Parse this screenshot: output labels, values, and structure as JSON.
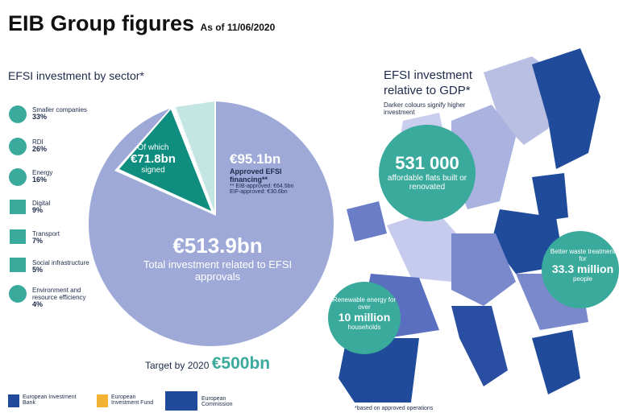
{
  "header": {
    "title": "EIB Group figures",
    "date": "As of 11/06/2020"
  },
  "sector": {
    "heading": "EFSI investment by sector*",
    "items": [
      {
        "label": "Smaller companies",
        "share": "33%"
      },
      {
        "label": "RDI",
        "share": "26%"
      },
      {
        "label": "Energy",
        "share": "16%"
      },
      {
        "label": "Digital",
        "share": "9%"
      },
      {
        "label": "Transport",
        "share": "7%"
      },
      {
        "label": "Social infrastructure",
        "share": "5%"
      },
      {
        "label": "Environment and resource efficiency",
        "share": "4%"
      }
    ],
    "signed": {
      "pre": "Of which",
      "amount": "€71.8bn",
      "post": "signed"
    },
    "approved": {
      "amount": "€95.1bn",
      "label": "Approved EFSI financing**",
      "eib": "** EIB-approved: €64.5bn",
      "eif": "EIF-approved: €30.6bn"
    },
    "total": {
      "amount": "€513.9bn",
      "label": "Total investment related to EFSI approvals"
    },
    "target": {
      "label": "Target by 2020",
      "amount": "€500bn"
    }
  },
  "gdp": {
    "heading": "EFSI investment relative to GDP*",
    "note": "Darker colours signify higher investment",
    "bubbles": [
      {
        "big": "531 000",
        "text": "affordable flats built or renovated"
      },
      {
        "pre": "Better waste treatment for",
        "big": "33.3 million",
        "text": "people"
      },
      {
        "pre": "Renewable energy for over",
        "big": "10 million",
        "text": "households"
      }
    ],
    "footnote": "*based on approved operations"
  },
  "logos": [
    "European Investment Bank",
    "European Investment Fund",
    "European Commission"
  ]
}
